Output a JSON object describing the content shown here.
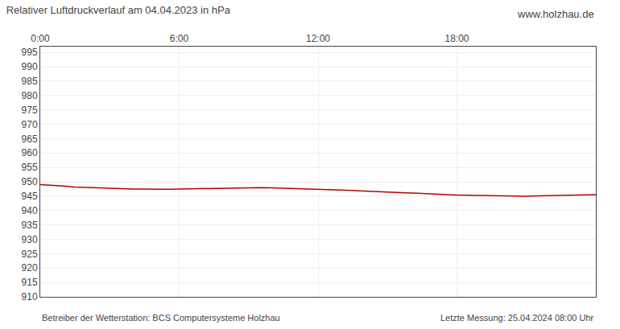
{
  "chart_data": {
    "type": "line",
    "title": "Relativer Luftdruckverlauf am 04.04.2023 in hPa",
    "annotations": [
      "www.holzhau.de",
      "Betreiber der Wetterstation: BCS Computersysteme Holzhau",
      "Letzte Messung: 25.04.2024 08:00 Uhr"
    ],
    "x": [
      0.0,
      0.25,
      0.5,
      1.0,
      1.5,
      2.0,
      2.5,
      3.0,
      3.5,
      4.0,
      4.5,
      5.0,
      5.5,
      6.0,
      6.5,
      7.0,
      7.5,
      8.0,
      8.5,
      9.0,
      9.5,
      10.0,
      10.5,
      11.0,
      11.5,
      12.0,
      12.5,
      13.0,
      13.5,
      14.0,
      14.5,
      15.0,
      15.5,
      16.0,
      16.5,
      17.0,
      17.5,
      18.0,
      18.5,
      19.0,
      19.5,
      20.0,
      20.5,
      21.0,
      21.5,
      22.0,
      22.5,
      23.0,
      23.5,
      24.0
    ],
    "values": [
      949.0,
      948.9,
      948.8,
      948.5,
      948.2,
      948.0,
      947.9,
      947.7,
      947.6,
      947.5,
      947.4,
      947.4,
      947.4,
      947.5,
      947.6,
      947.7,
      947.8,
      947.8,
      947.9,
      948.0,
      948.0,
      947.9,
      947.8,
      947.7,
      947.6,
      947.5,
      947.4,
      947.2,
      947.0,
      946.8,
      946.6,
      946.4,
      946.2,
      946.0,
      945.8,
      945.6,
      945.5,
      945.4,
      945.3,
      945.2,
      945.2,
      945.1,
      945.1,
      945.0,
      945.1,
      945.2,
      945.3,
      945.4,
      945.5,
      945.5
    ],
    "color": "#bb0000",
    "xlim": [
      0,
      24
    ],
    "xticks": [
      {
        "value": 0,
        "label": "0:00"
      },
      {
        "value": 6,
        "label": "6:00"
      },
      {
        "value": 12,
        "label": "12:00"
      },
      {
        "value": 18,
        "label": "18:00"
      }
    ],
    "ylim": [
      910,
      997
    ],
    "yticks": [
      910,
      915,
      920,
      925,
      930,
      935,
      940,
      945,
      950,
      955,
      960,
      965,
      970,
      975,
      980,
      985,
      990,
      995
    ],
    "grid": true
  }
}
